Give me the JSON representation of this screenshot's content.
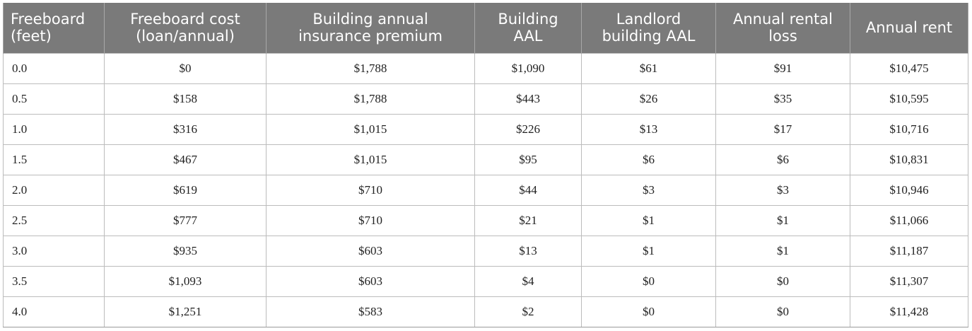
{
  "table": {
    "columns": [
      [
        "Freeboard",
        "(feet)"
      ],
      [
        "Freeboard cost",
        "(loan/annual)"
      ],
      [
        "Building annual",
        "insurance premium"
      ],
      [
        "Building",
        "AAL"
      ],
      [
        "Landlord",
        "building AAL"
      ],
      [
        "Annual rental",
        "loss"
      ],
      [
        "Annual rent",
        ""
      ]
    ],
    "rows": [
      [
        "0.0",
        "$0",
        "$1,788",
        "$1,090",
        "$61",
        "$91",
        "$10,475"
      ],
      [
        "0.5",
        "$158",
        "$1,788",
        "$443",
        "$26",
        "$35",
        "$10,595"
      ],
      [
        "1.0",
        "$316",
        "$1,015",
        "$226",
        "$13",
        "$17",
        "$10,716"
      ],
      [
        "1.5",
        "$467",
        "$1,015",
        "$95",
        "$6",
        "$6",
        "$10,831"
      ],
      [
        "2.0",
        "$619",
        "$710",
        "$44",
        "$3",
        "$3",
        "$10,946"
      ],
      [
        "2.5",
        "$777",
        "$710",
        "$21",
        "$1",
        "$1",
        "$11,066"
      ],
      [
        "3.0",
        "$935",
        "$603",
        "$13",
        "$1",
        "$1",
        "$11,187"
      ],
      [
        "3.5",
        "$1,093",
        "$603",
        "$4",
        "$0",
        "$0",
        "$11,307"
      ],
      [
        "4.0",
        "$1,251",
        "$583",
        "$2",
        "$0",
        "$0",
        "$11,428"
      ]
    ]
  }
}
